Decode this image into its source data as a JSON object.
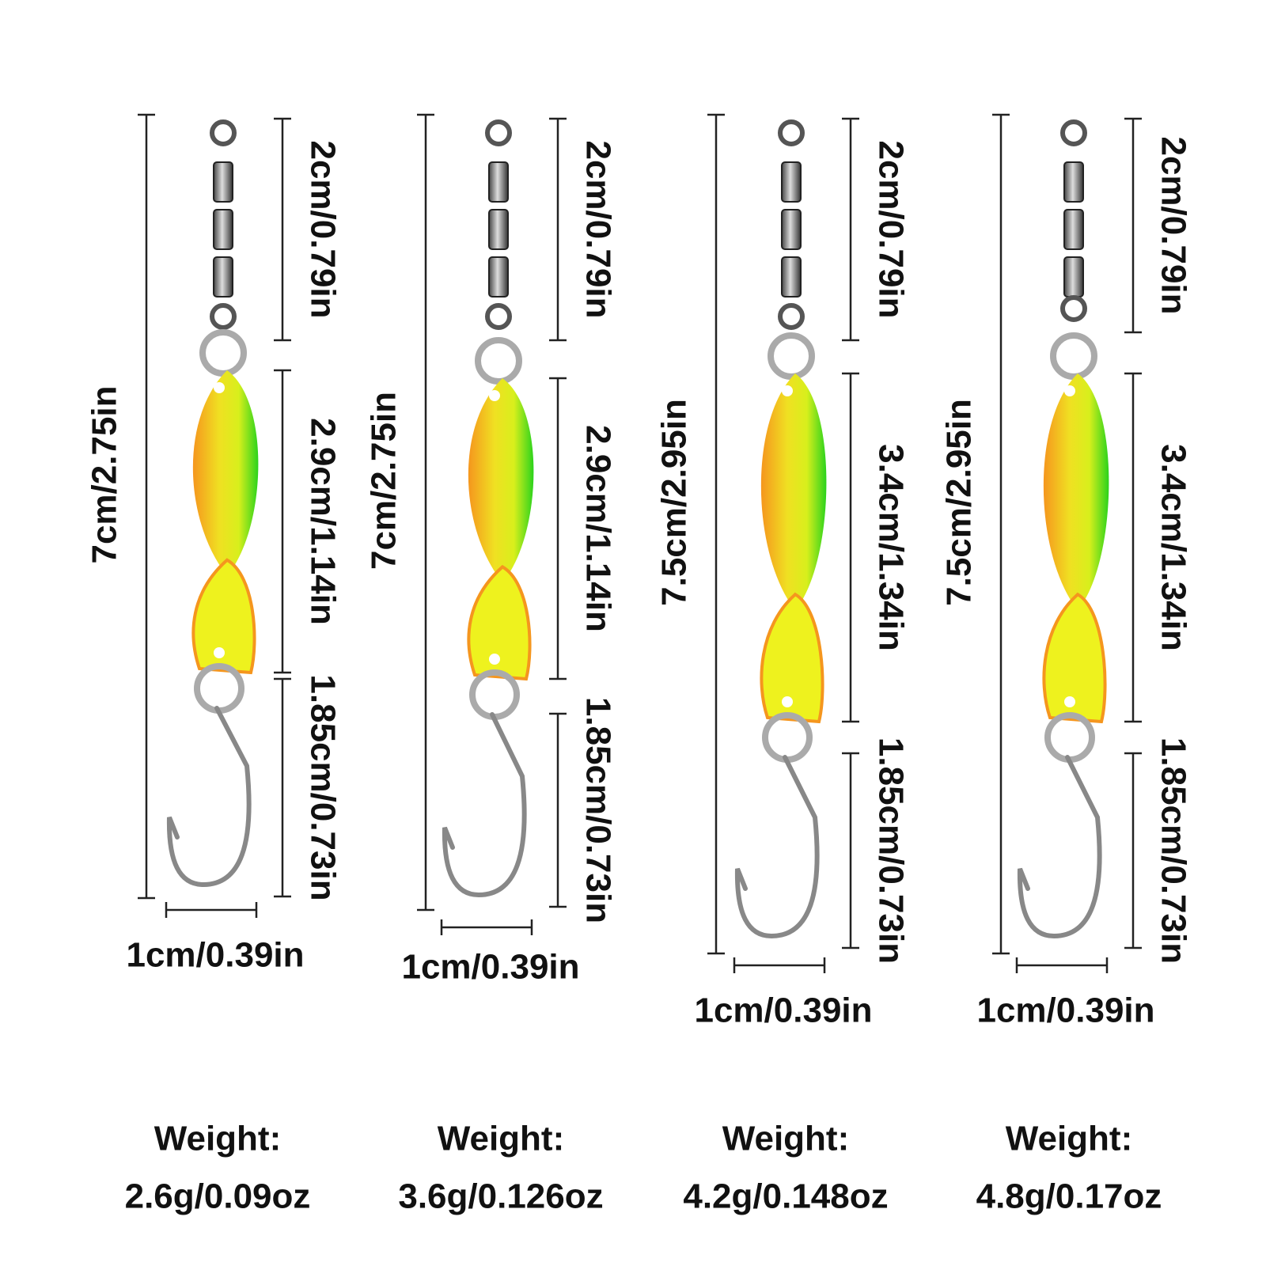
{
  "items": [
    {
      "total": "7cm/2.75in",
      "swivel": "2cm/0.79in",
      "body": "2.9cm/1.14in",
      "hook": "1.85cm/0.73in",
      "width": "1cm/0.39in",
      "weight_label": "Weight:",
      "weight": "2.6g/0.09oz"
    },
    {
      "total": "7cm/2.75in",
      "swivel": "2cm/0.79in",
      "body": "2.9cm/1.14in",
      "hook": "1.85cm/0.73in",
      "width": "1cm/0.39in",
      "weight_label": "Weight:",
      "weight": "3.6g/0.126oz"
    },
    {
      "total": "7.5cm/2.95in",
      "swivel": "2cm/0.79in",
      "body": "3.4cm/1.34in",
      "hook": "1.85cm/0.73in",
      "width": "1cm/0.39in",
      "weight_label": "Weight:",
      "weight": "4.2g/0.148oz"
    },
    {
      "total": "7.5cm/2.95in",
      "swivel": "2cm/0.79in",
      "body": "3.4cm/1.34in",
      "hook": "1.85cm/0.73in",
      "width": "1cm/0.39in",
      "weight_label": "Weight:",
      "weight": "4.8g/0.17oz"
    }
  ]
}
